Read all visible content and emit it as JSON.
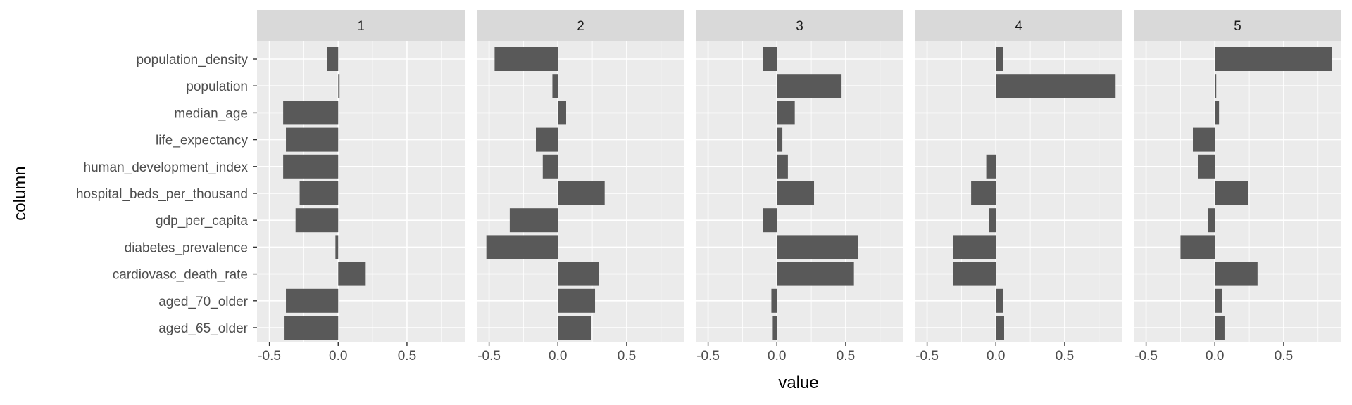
{
  "chart_data": {
    "type": "bar",
    "orientation": "horizontal",
    "facet_variable": "cluster",
    "facets": [
      "1",
      "2",
      "3",
      "4",
      "5"
    ],
    "categories": [
      "population_density",
      "population",
      "median_age",
      "life_expectancy",
      "human_development_index",
      "hospital_beds_per_thousand",
      "gdp_per_capita",
      "diabetes_prevalence",
      "cardiovasc_death_rate",
      "aged_70_older",
      "aged_65_older"
    ],
    "series": [
      {
        "facet": "1",
        "values": [
          -0.08,
          0.01,
          -0.4,
          -0.38,
          -0.4,
          -0.28,
          -0.31,
          -0.02,
          0.2,
          -0.38,
          -0.39
        ]
      },
      {
        "facet": "2",
        "values": [
          -0.46,
          -0.04,
          0.06,
          -0.16,
          -0.11,
          0.34,
          -0.35,
          -0.52,
          0.3,
          0.27,
          0.24
        ]
      },
      {
        "facet": "3",
        "values": [
          -0.1,
          0.47,
          0.13,
          0.04,
          0.08,
          0.27,
          -0.1,
          0.59,
          0.56,
          -0.04,
          -0.03
        ]
      },
      {
        "facet": "4",
        "values": [
          0.05,
          0.87,
          0.0,
          0.0,
          -0.07,
          -0.18,
          -0.05,
          -0.31,
          -0.31,
          0.05,
          0.06
        ]
      },
      {
        "facet": "5",
        "values": [
          0.85,
          0.01,
          0.03,
          -0.16,
          -0.12,
          0.24,
          -0.05,
          -0.25,
          0.31,
          0.05,
          0.07
        ]
      }
    ],
    "x_ticks": [
      -0.5,
      0.0,
      0.5
    ],
    "x_tick_labels": [
      "-0.5",
      "0.0",
      "0.5"
    ],
    "xlim": [
      -0.59,
      0.92
    ],
    "xlabel": "value",
    "ylabel": "column",
    "grid": true,
    "legend": "none"
  }
}
